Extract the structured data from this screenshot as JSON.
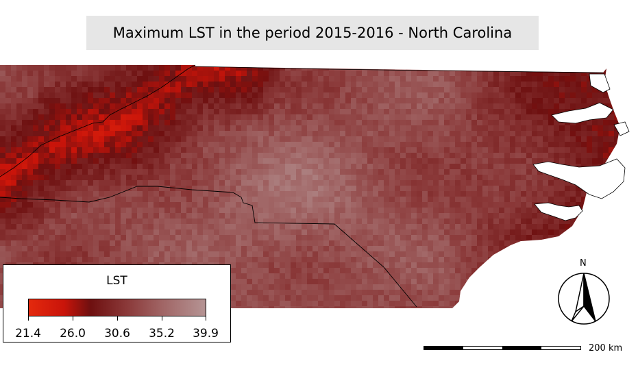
{
  "title": "Maximum LST in the period 2015-2016 - North Carolina",
  "legend": {
    "title": "LST",
    "ticks": [
      "21.4",
      "26.0",
      "30.6",
      "35.2",
      "39.9"
    ],
    "min": 21.4,
    "max": 39.9
  },
  "scale_bar": {
    "label": "200 km"
  },
  "north_arrow": {
    "label": "N"
  },
  "colors": {
    "low": "#e4290d",
    "mid": "#6e1010",
    "high": "#b59494",
    "title_bg": "#e6e6e6"
  }
}
